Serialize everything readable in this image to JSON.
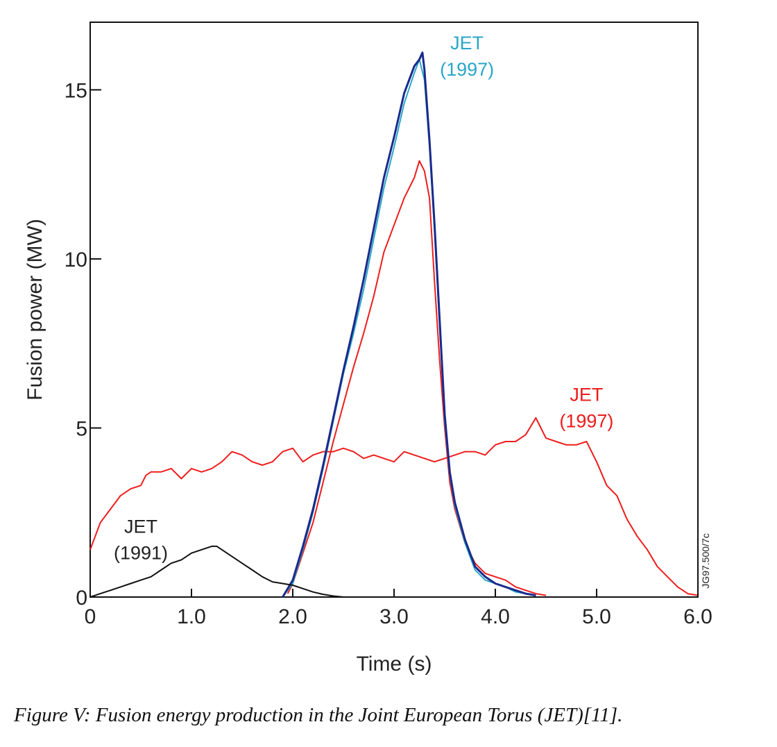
{
  "caption": "Figure V: Fusion energy production in the Joint European Torus (JET)[11].",
  "chart_data": {
    "type": "line",
    "xlabel": "Time (s)",
    "ylabel": "Fusion power (MW)",
    "xlim": [
      0,
      6
    ],
    "ylim": [
      0,
      17
    ],
    "x_ticks": [
      0,
      1,
      2,
      3,
      4,
      5,
      6
    ],
    "x_tick_labels": [
      "0",
      "1.0",
      "2.0",
      "3.0",
      "4.0",
      "5.0",
      "6.0"
    ],
    "y_ticks": [
      0,
      5,
      10,
      15
    ],
    "y_tick_labels": [
      "0",
      "5",
      "10",
      "15"
    ],
    "grid": false,
    "code_label": "JG97.500/7c",
    "annotations": [
      {
        "line1": "JET",
        "line2": "(1997)",
        "color": "#2aa6c8",
        "x": 3.72,
        "y": 16.2
      },
      {
        "line1": "JET",
        "line2": "(1997)",
        "color": "#ee1c1c",
        "x": 4.9,
        "y": 5.8
      },
      {
        "line1": "JET",
        "line2": "(1991)",
        "color": "#222222",
        "x": 0.5,
        "y": 1.9
      }
    ],
    "series": [
      {
        "color": "#ee1c1c",
        "x": [
          0,
          0.1,
          0.2,
          0.3,
          0.4,
          0.5,
          0.55,
          0.6,
          0.7,
          0.8,
          0.9,
          1.0,
          1.1,
          1.2,
          1.3,
          1.4,
          1.5,
          1.6,
          1.7,
          1.8,
          1.9,
          2.0,
          2.1,
          2.2,
          2.3,
          2.4,
          2.5,
          2.6,
          2.7,
          2.8,
          2.9,
          3.0,
          3.1,
          3.2,
          3.3,
          3.4,
          3.5,
          3.6,
          3.7,
          3.8,
          3.9,
          4.0,
          4.1,
          4.2,
          4.3,
          4.4,
          4.45,
          4.5,
          4.6,
          4.7,
          4.8,
          4.9,
          5.0,
          5.1,
          5.2,
          5.3,
          5.4,
          5.5,
          5.6,
          5.7,
          5.8,
          5.9,
          6.0
        ],
        "values": [
          1.4,
          2.2,
          2.6,
          3.0,
          3.2,
          3.3,
          3.6,
          3.7,
          3.7,
          3.8,
          3.5,
          3.8,
          3.7,
          3.8,
          4.0,
          4.3,
          4.2,
          4.0,
          3.9,
          4.0,
          4.3,
          4.4,
          4.0,
          4.2,
          4.3,
          4.3,
          4.4,
          4.3,
          4.1,
          4.2,
          4.1,
          4.0,
          4.3,
          4.2,
          4.1,
          4.0,
          4.1,
          4.2,
          4.3,
          4.3,
          4.2,
          4.5,
          4.6,
          4.6,
          4.8,
          5.3,
          5.0,
          4.7,
          4.6,
          4.5,
          4.5,
          4.6,
          4.0,
          3.3,
          3.0,
          2.3,
          1.8,
          1.4,
          0.9,
          0.6,
          0.3,
          0.1,
          0.05
        ]
      },
      {
        "color": "#ee1c1c",
        "x": [
          1.95,
          2.0,
          2.1,
          2.2,
          2.3,
          2.4,
          2.5,
          2.6,
          2.7,
          2.8,
          2.9,
          3.0,
          3.1,
          3.2,
          3.25,
          3.3,
          3.35,
          3.4,
          3.45,
          3.5,
          3.55,
          3.6,
          3.7,
          3.8,
          3.9,
          4.0,
          4.1,
          4.2,
          4.3,
          4.4,
          4.5
        ],
        "values": [
          0.1,
          0.4,
          1.3,
          2.2,
          3.4,
          4.6,
          5.7,
          6.8,
          7.8,
          8.9,
          10.2,
          11.0,
          11.8,
          12.4,
          12.9,
          12.6,
          11.8,
          9.3,
          7.0,
          5.0,
          3.4,
          2.6,
          1.6,
          1.0,
          0.7,
          0.6,
          0.5,
          0.3,
          0.2,
          0.1,
          0.05
        ]
      },
      {
        "color": "#2aa6c8",
        "x": [
          1.9,
          2.0,
          2.1,
          2.2,
          2.3,
          2.4,
          2.5,
          2.6,
          2.7,
          2.8,
          2.9,
          3.0,
          3.1,
          3.2,
          3.25,
          3.3,
          3.35,
          3.4,
          3.45,
          3.5,
          3.55,
          3.6,
          3.7,
          3.8,
          3.9,
          4.0,
          4.1,
          4.2,
          4.3,
          4.4
        ],
        "values": [
          0,
          0.4,
          1.4,
          2.5,
          3.8,
          5.2,
          6.6,
          7.8,
          9.1,
          10.6,
          12.1,
          13.3,
          14.6,
          15.5,
          15.9,
          15.3,
          13.3,
          10.8,
          8.0,
          5.2,
          3.6,
          2.7,
          1.6,
          0.8,
          0.5,
          0.4,
          0.3,
          0.15,
          0.1,
          0.05
        ]
      },
      {
        "color": "#1a2a8c",
        "x": [
          1.9,
          2.0,
          2.1,
          2.2,
          2.3,
          2.4,
          2.5,
          2.6,
          2.7,
          2.8,
          2.9,
          3.0,
          3.1,
          3.2,
          3.25,
          3.28,
          3.3,
          3.35,
          3.4,
          3.45,
          3.5,
          3.55,
          3.6,
          3.7,
          3.8,
          3.9,
          4.0,
          4.1,
          4.2,
          4.3,
          4.4
        ],
        "values": [
          0,
          0.5,
          1.5,
          2.6,
          3.9,
          5.3,
          6.7,
          8.0,
          9.4,
          10.9,
          12.4,
          13.6,
          14.9,
          15.7,
          15.9,
          16.1,
          15.6,
          13.5,
          11.0,
          8.2,
          5.4,
          3.7,
          2.8,
          1.7,
          0.9,
          0.6,
          0.4,
          0.3,
          0.2,
          0.1,
          0.05
        ]
      },
      {
        "color": "#111111",
        "x": [
          0,
          0.1,
          0.2,
          0.3,
          0.4,
          0.5,
          0.6,
          0.7,
          0.8,
          0.9,
          1.0,
          1.1,
          1.2,
          1.25,
          1.3,
          1.4,
          1.5,
          1.6,
          1.7,
          1.8,
          1.9,
          2.0,
          2.1,
          2.2,
          2.3,
          2.4,
          2.5
        ],
        "values": [
          0,
          0.1,
          0.2,
          0.3,
          0.4,
          0.5,
          0.6,
          0.8,
          1.0,
          1.1,
          1.3,
          1.4,
          1.5,
          1.5,
          1.4,
          1.2,
          1.0,
          0.8,
          0.6,
          0.45,
          0.4,
          0.35,
          0.25,
          0.15,
          0.08,
          0.03,
          0
        ]
      }
    ]
  }
}
